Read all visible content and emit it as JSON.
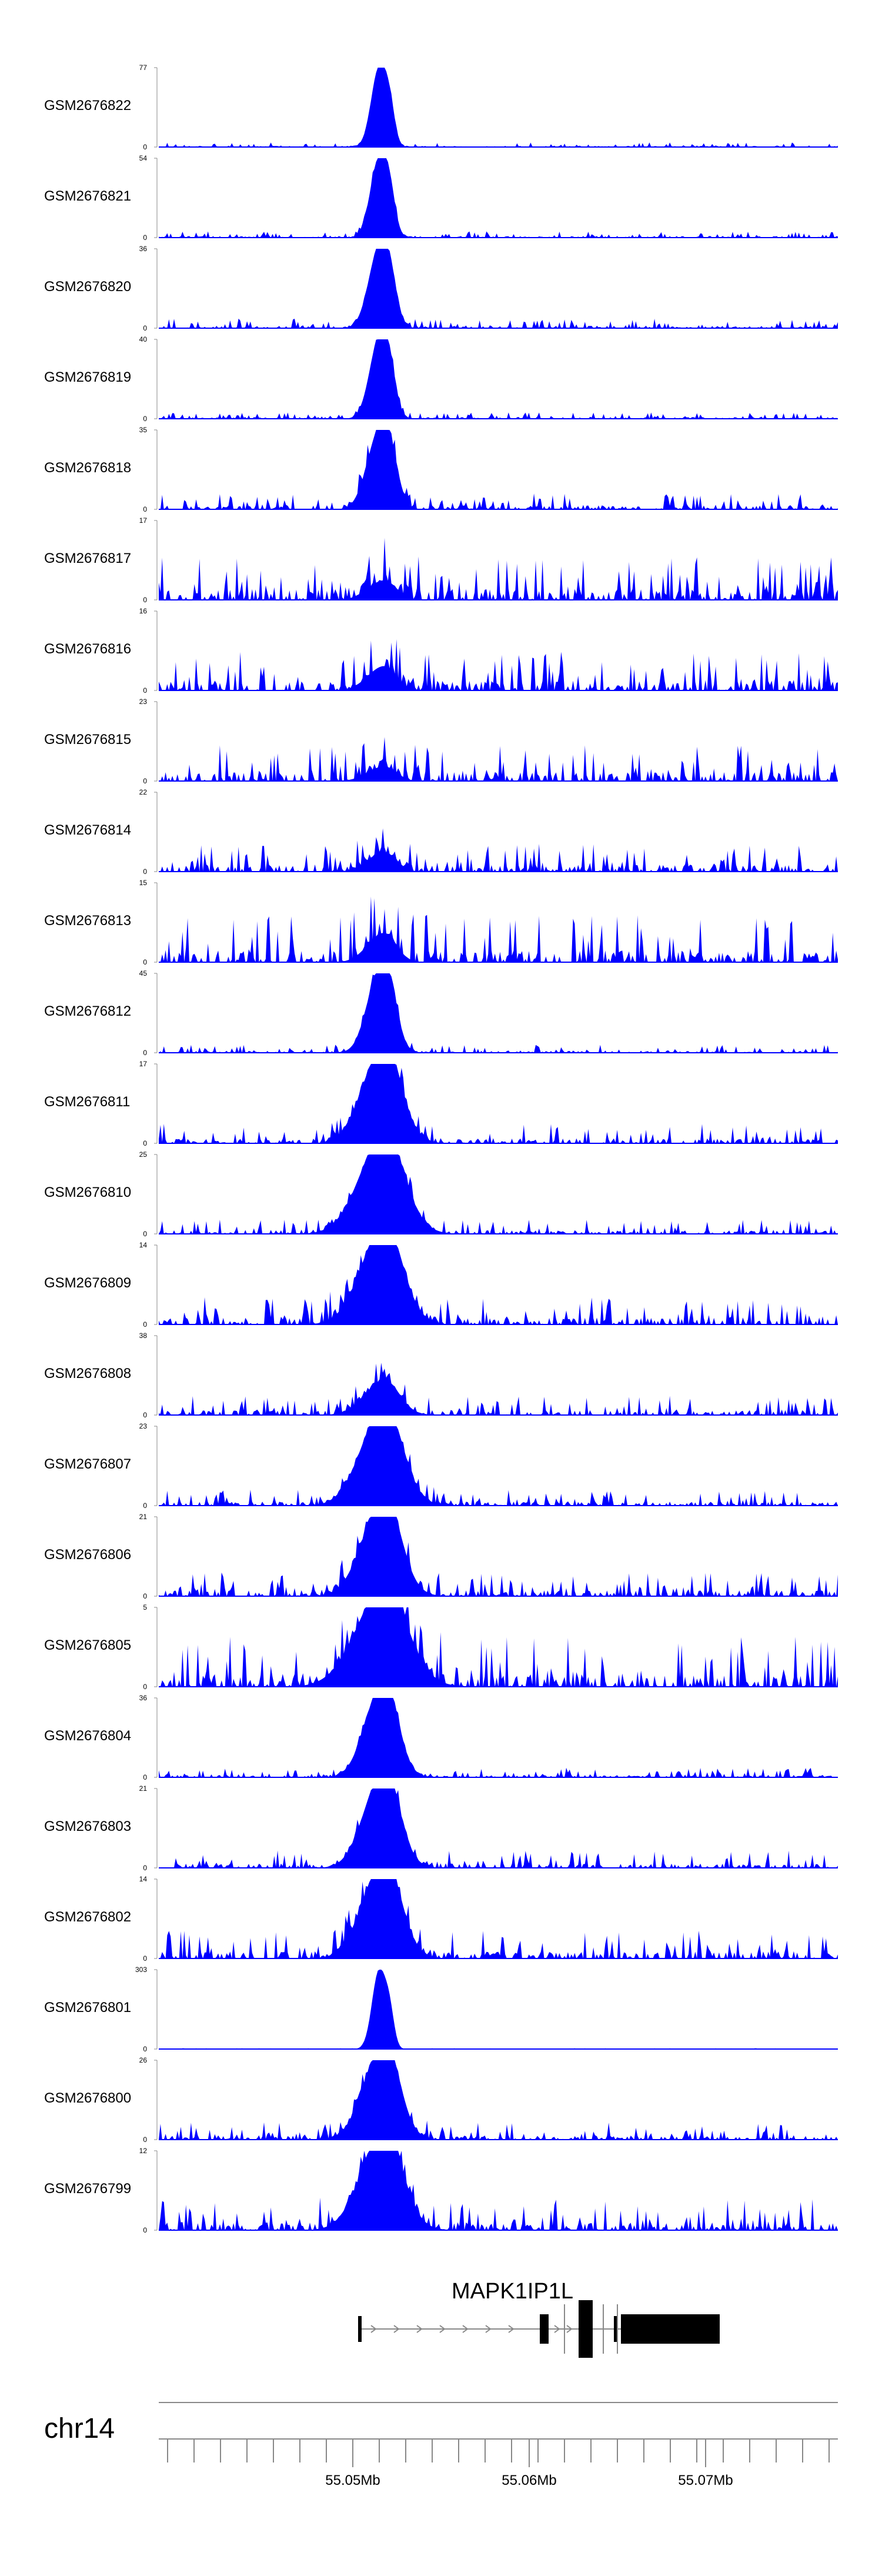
{
  "chart_data": {
    "type": "area",
    "title": "",
    "xlabel": "",
    "ylabel": "",
    "xlim": [
      55.039,
      55.0775
    ],
    "tracks": [
      {
        "name": "GSM2676822",
        "ymax": 77,
        "noise": 0.06,
        "peak": 1.0,
        "width": 0.00045
      },
      {
        "name": "GSM2676821",
        "ymax": 54,
        "noise": 0.08,
        "peak": 1.0,
        "width": 0.0005
      },
      {
        "name": "GSM2676820",
        "ymax": 36,
        "noise": 0.12,
        "peak": 1.0,
        "width": 0.0006
      },
      {
        "name": "GSM2676819",
        "ymax": 40,
        "noise": 0.08,
        "peak": 1.0,
        "width": 0.00055
      },
      {
        "name": "GSM2676818",
        "ymax": 35,
        "noise": 0.2,
        "peak": 0.95,
        "width": 0.0007
      },
      {
        "name": "GSM2676817",
        "ymax": 17,
        "noise": 0.55,
        "peak": 0.2,
        "width": 0.0008
      },
      {
        "name": "GSM2676816",
        "ymax": 16,
        "noise": 0.5,
        "peak": 0.25,
        "width": 0.0008
      },
      {
        "name": "GSM2676815",
        "ymax": 23,
        "noise": 0.45,
        "peak": 0.15,
        "width": 0.0008
      },
      {
        "name": "GSM2676814",
        "ymax": 22,
        "noise": 0.35,
        "peak": 0.2,
        "width": 0.0008
      },
      {
        "name": "GSM2676813",
        "ymax": 15,
        "noise": 0.6,
        "peak": 0.3,
        "width": 0.0008
      },
      {
        "name": "GSM2676812",
        "ymax": 45,
        "noise": 0.1,
        "peak": 1.0,
        "width": 0.0007
      },
      {
        "name": "GSM2676811",
        "ymax": 17,
        "noise": 0.25,
        "peak": 1.0,
        "width": 0.0011
      },
      {
        "name": "GSM2676810",
        "ymax": 25,
        "noise": 0.18,
        "peak": 1.0,
        "width": 0.0013
      },
      {
        "name": "GSM2676809",
        "ymax": 14,
        "noise": 0.35,
        "peak": 1.0,
        "width": 0.0012
      },
      {
        "name": "GSM2676808",
        "ymax": 38,
        "noise": 0.25,
        "peak": 0.35,
        "width": 0.001
      },
      {
        "name": "GSM2676807",
        "ymax": 23,
        "noise": 0.2,
        "peak": 1.0,
        "width": 0.0012
      },
      {
        "name": "GSM2676806",
        "ymax": 21,
        "noise": 0.3,
        "peak": 1.0,
        "width": 0.0011
      },
      {
        "name": "GSM2676805",
        "ymax": 5,
        "noise": 0.65,
        "peak": 1.0,
        "width": 0.0015
      },
      {
        "name": "GSM2676804",
        "ymax": 36,
        "noise": 0.12,
        "peak": 1.0,
        "width": 0.0009
      },
      {
        "name": "GSM2676803",
        "ymax": 21,
        "noise": 0.22,
        "peak": 1.0,
        "width": 0.001
      },
      {
        "name": "GSM2676802",
        "ymax": 14,
        "noise": 0.35,
        "peak": 1.0,
        "width": 0.0011
      },
      {
        "name": "GSM2676801",
        "ymax": 303,
        "noise": 0.01,
        "peak": 1.0,
        "width": 0.0004
      },
      {
        "name": "GSM2676800",
        "ymax": 26,
        "noise": 0.22,
        "peak": 1.0,
        "width": 0.001
      },
      {
        "name": "GSM2676799",
        "ymax": 12,
        "noise": 0.4,
        "peak": 1.0,
        "width": 0.0012
      }
    ],
    "peak_center": 55.0515,
    "y_zero_label": "0",
    "fill_color": "#0000ff",
    "gene": {
      "name": "MAPK1IP1L",
      "tx_start": 55.0503,
      "tx_end": 55.0708,
      "exons": [
        {
          "start": 55.0503,
          "end": 55.0505
        },
        {
          "start": 55.0606,
          "end": 55.0611
        },
        {
          "start": 55.0628,
          "end": 55.0636
        },
        {
          "start": 55.0648,
          "end": 55.0649
        },
        {
          "start": 55.0652,
          "end": 55.0708
        }
      ],
      "junction_marks": [
        55.062,
        55.0642,
        55.065
      ],
      "strand_arrows": [
        55.0512,
        55.0525,
        55.0538,
        55.0551,
        55.0564,
        55.0577,
        55.059,
        55.0616,
        55.0623
      ]
    },
    "chromosome": "chr14",
    "x_ticks": [
      {
        "value": 55.05,
        "label": "55.05Mb"
      },
      {
        "value": 55.06,
        "label": "55.06Mb"
      },
      {
        "value": 55.07,
        "label": "55.07Mb"
      }
    ],
    "minor_tick_step": 0.0015,
    "colors": {
      "signal": "#0000ff",
      "axis": "#888888",
      "gene": "#000000",
      "intron": "#888888"
    }
  }
}
